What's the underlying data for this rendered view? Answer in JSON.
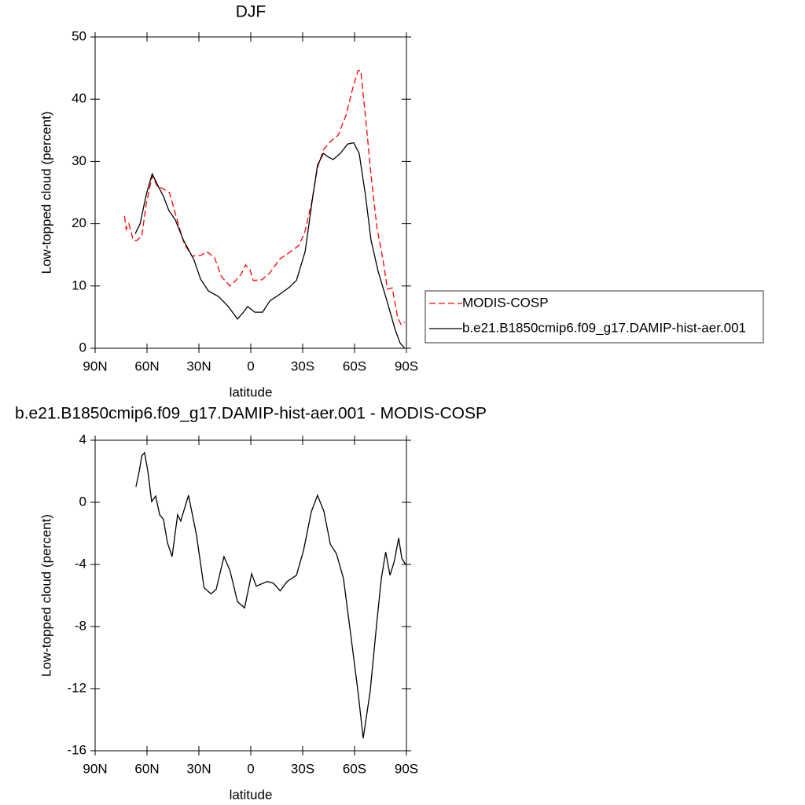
{
  "chart_data": [
    {
      "type": "line",
      "title": "DJF",
      "xlabel": "latitude",
      "ylabel": "Low-topped cloud (percent)",
      "xlim": [
        90,
        -90
      ],
      "xticks": [
        {
          "value": 90,
          "label": "90N"
        },
        {
          "value": 60,
          "label": "60N"
        },
        {
          "value": 30,
          "label": "30N"
        },
        0,
        {
          "value": -30,
          "label": "30S"
        },
        {
          "value": -60,
          "label": "60S"
        },
        {
          "value": -90,
          "label": "90S"
        }
      ],
      "ylim": [
        0,
        50
      ],
      "yticks": [
        0,
        10,
        20,
        30,
        40,
        50
      ],
      "series": [
        {
          "name": "MODIS-COSP",
          "color": "#ff0000",
          "dashed": true,
          "x": [
            73,
            72,
            70.5,
            68,
            66,
            63,
            60.5,
            57,
            54,
            50.5,
            47,
            42,
            38.5,
            34,
            29,
            25.5,
            21,
            17,
            12,
            8.6,
            5.5,
            3,
            0.5,
            -1.4,
            -6.4,
            -11,
            -17,
            -23,
            -27.7,
            -31,
            -35,
            -38.6,
            -42,
            -46,
            -50.5,
            -55,
            -59,
            -62,
            -63.6,
            -66.4,
            -69.5,
            -73,
            -76.4,
            -79,
            -81.8,
            -85,
            -87,
            -89
          ],
          "values": [
            21.2,
            19.1,
            20,
            17.4,
            17.3,
            18,
            23.1,
            27.7,
            26,
            25.6,
            25,
            20,
            16.8,
            14.8,
            14.9,
            15.5,
            14.6,
            11.5,
            10,
            10.9,
            11.9,
            13.4,
            12.6,
            10.9,
            11,
            12.1,
            14.4,
            15.5,
            16.5,
            18.4,
            23.1,
            29,
            31.9,
            33.2,
            34.2,
            37.4,
            41.8,
            44.6,
            44.6,
            37,
            27.9,
            19.3,
            14.3,
            9.5,
            9.7,
            4.8,
            3.8,
            4.2
          ]
        },
        {
          "name": "b.e21.B1850cmip6.f09_g17.DAMIP-hist-aer.001",
          "color": "#000000",
          "dashed": false,
          "x": [
            66.8,
            64,
            60.5,
            57,
            54,
            50.5,
            47.3,
            43.6,
            39,
            33,
            29,
            24.5,
            18.6,
            13,
            7.7,
            4.5,
            1.8,
            -2.3,
            -6.8,
            -11,
            -16.4,
            -22.3,
            -26.4,
            -31.4,
            -35.5,
            -38.6,
            -42,
            -45,
            -47.7,
            -51.8,
            -56,
            -59.5,
            -62.7,
            -66.4,
            -69.5,
            -73.6,
            -77.7,
            -81,
            -83.6,
            -86.4,
            -89
          ],
          "values": [
            18.4,
            20,
            24.6,
            28,
            26.3,
            24.4,
            22.1,
            20.6,
            17.4,
            14.3,
            11.1,
            9.2,
            8.3,
            6.7,
            4.7,
            5.7,
            6.7,
            5.8,
            5.8,
            7.6,
            8.6,
            9.8,
            10.9,
            15.5,
            23.7,
            29.4,
            31.3,
            30.7,
            30.3,
            31.3,
            32.8,
            33,
            31.3,
            24.4,
            17.4,
            12.4,
            8.6,
            5.4,
            2.9,
            0.8,
            0
          ]
        }
      ]
    },
    {
      "type": "line",
      "title": "b.e21.B1850cmip6.f09_g17.DAMIP-hist-aer.001 - MODIS-COSP",
      "xlabel": "latitude",
      "ylabel": "Low-topped cloud (percent)",
      "xlim": [
        90,
        -90
      ],
      "xticks": [
        {
          "value": 90,
          "label": "90N"
        },
        {
          "value": 60,
          "label": "60N"
        },
        {
          "value": 30,
          "label": "30N"
        },
        0,
        {
          "value": -30,
          "label": "30S"
        },
        {
          "value": -60,
          "label": "60S"
        },
        {
          "value": -90,
          "label": "90S"
        }
      ],
      "ylim": [
        -16,
        4
      ],
      "yticks": [
        -16,
        -12,
        -8,
        -4,
        0,
        4
      ],
      "series": [
        {
          "color": "#000000",
          "dashed": false,
          "x": [
            66.4,
            64.5,
            63,
            61.4,
            59.5,
            57.3,
            55,
            52.7,
            50.5,
            48.2,
            45.5,
            42.3,
            40.5,
            36,
            31.4,
            27,
            23,
            20,
            15.5,
            12,
            7.7,
            3.6,
            -0.5,
            -3.2,
            -9.5,
            -13,
            -17,
            -21,
            -26.4,
            -30.5,
            -35,
            -38.6,
            -42.3,
            -46,
            -49.5,
            -53.6,
            -58,
            -62,
            -65,
            -69,
            -73,
            -75.5,
            -78,
            -80.5,
            -83,
            -85.5,
            -87.3,
            -89.5
          ],
          "values": [
            1,
            2,
            3,
            3.2,
            2,
            0.05,
            0.4,
            -0.8,
            -1.1,
            -2.6,
            -3.5,
            -0.8,
            -1.2,
            0.45,
            -2.1,
            -5.5,
            -5.9,
            -5.6,
            -3.5,
            -4.4,
            -6.4,
            -6.8,
            -4.6,
            -5.4,
            -5.1,
            -5.2,
            -5.7,
            -5.1,
            -4.7,
            -3.1,
            -0.6,
            0.45,
            -0.6,
            -2.7,
            -3.3,
            -4.9,
            -8.7,
            -12.2,
            -15.2,
            -12.2,
            -7.6,
            -4.9,
            -3.2,
            -4.7,
            -3.8,
            -2.3,
            -3.6,
            -4
          ]
        }
      ]
    }
  ]
}
